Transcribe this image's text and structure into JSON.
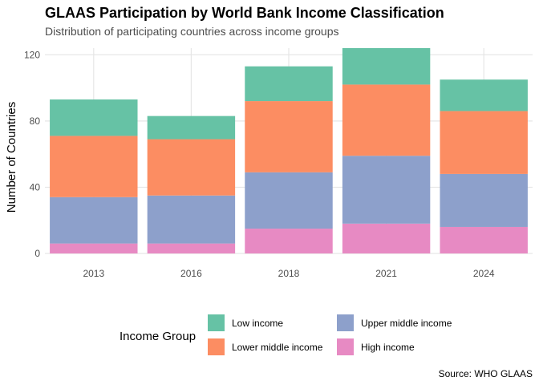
{
  "chart_data": {
    "type": "bar",
    "stacked": true,
    "title": "GLAAS Participation by World Bank Income Classification",
    "subtitle": "Distribution of participating countries across income groups",
    "xlabel": "",
    "ylabel": "Number of Countries",
    "caption": "Source: WHO GLAAS",
    "categories": [
      "2013",
      "2016",
      "2018",
      "2021",
      "2024"
    ],
    "ylim": [
      0,
      124
    ],
    "yticks": [
      0,
      40,
      80,
      120
    ],
    "grid": true,
    "legend": {
      "title": "Income Group",
      "position": "bottom"
    },
    "series": [
      {
        "name": "High income",
        "color": "#e78ac3",
        "values": [
          6,
          6,
          15,
          18,
          16
        ]
      },
      {
        "name": "Upper middle income",
        "color": "#8da0cb",
        "values": [
          28,
          29,
          34,
          41,
          32
        ]
      },
      {
        "name": "Lower middle income",
        "color": "#fc8d62",
        "values": [
          37,
          34,
          43,
          43,
          38
        ]
      },
      {
        "name": "Low income",
        "color": "#66c2a5",
        "values": [
          22,
          14,
          21,
          22,
          19
        ]
      }
    ],
    "legend_order": [
      "Low income",
      "Lower middle income",
      "Upper middle income",
      "High income"
    ]
  }
}
